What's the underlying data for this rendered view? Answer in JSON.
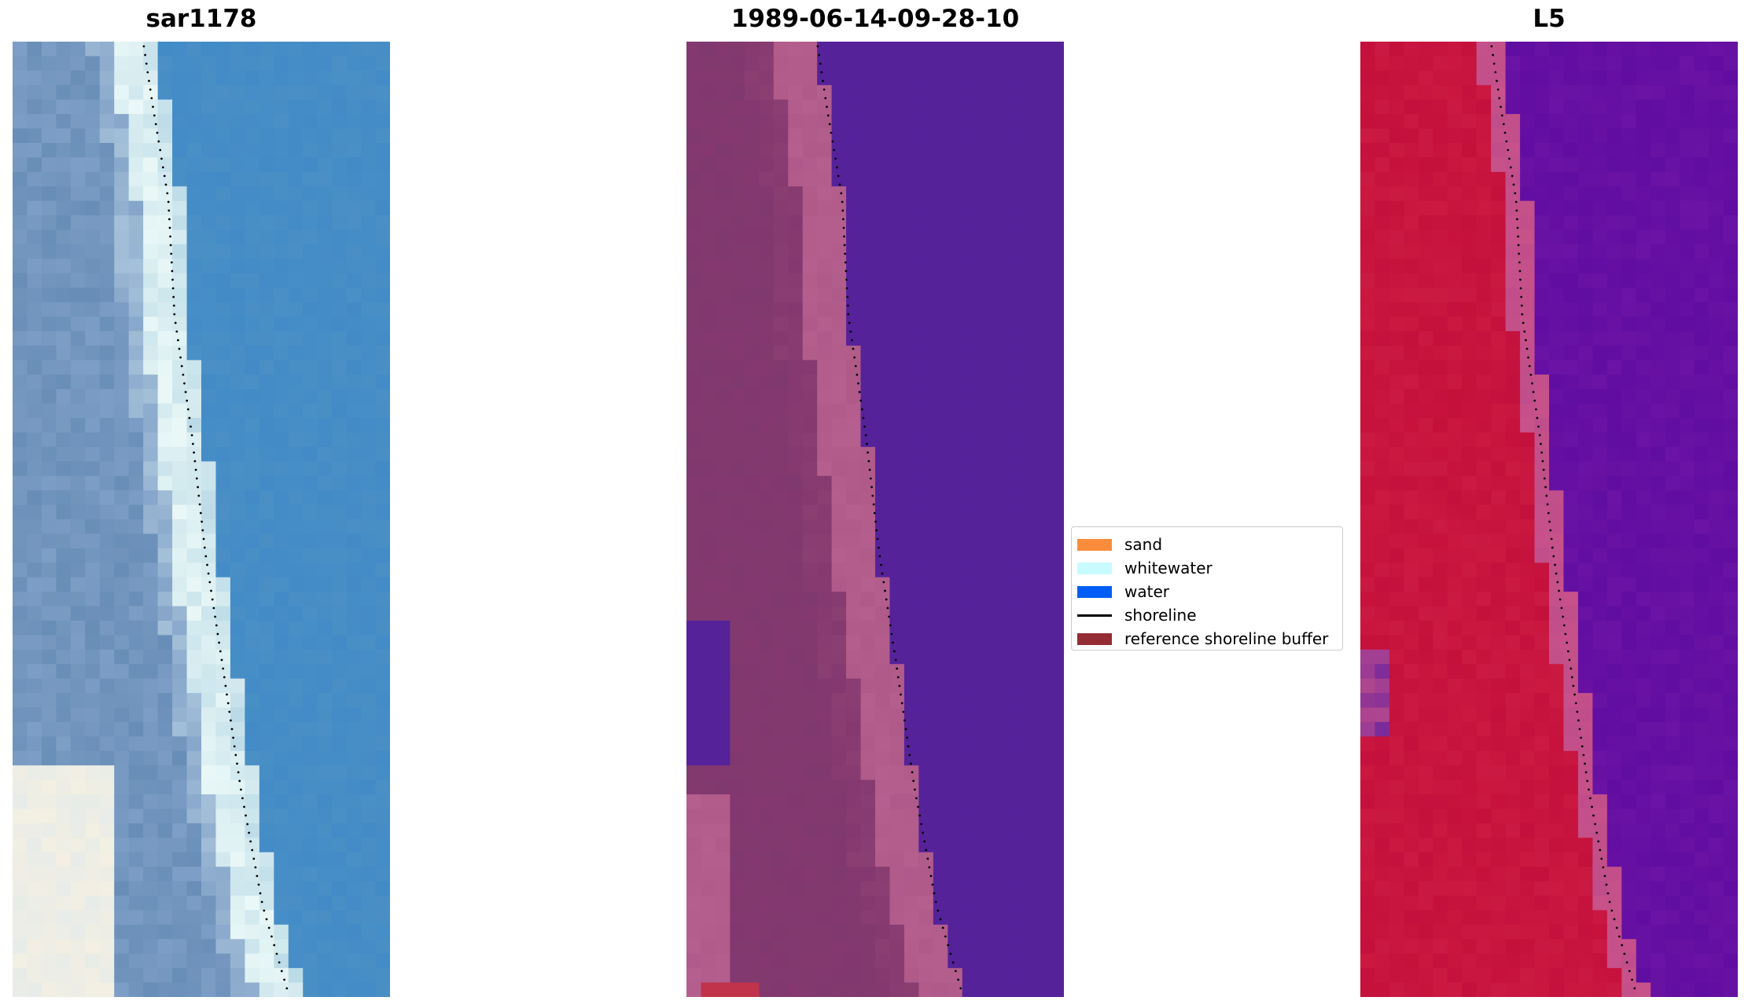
{
  "panels": [
    {
      "title": "sar1178"
    },
    {
      "title": "1989-06-14-09-28-10"
    },
    {
      "title": "L5"
    }
  ],
  "legend": {
    "items": [
      {
        "label": "sand",
        "color": "#fb8c3c",
        "kind": "patch"
      },
      {
        "label": "whitewater",
        "color": "#c8fbff",
        "kind": "patch"
      },
      {
        "label": "water",
        "color": "#005ef7",
        "kind": "patch"
      },
      {
        "label": "shoreline",
        "color": "#000000",
        "kind": "line"
      },
      {
        "label": "reference shoreline buffer",
        "color": "#942c34",
        "kind": "patch"
      }
    ]
  },
  "colors": {
    "rgb_water": "#4a90c6",
    "rgb_whitewater": "#eaf8f7",
    "rgb_beach": "#7d9ec6",
    "classified_water": "#55229a",
    "classified_sand_dark": "#84386f",
    "classified_sand_light": "#b55f8e",
    "classified_buffer": "#c0334a",
    "index_land": "#c4103c",
    "index_transition": "#c8528a",
    "index_water": "#6a13a4"
  }
}
